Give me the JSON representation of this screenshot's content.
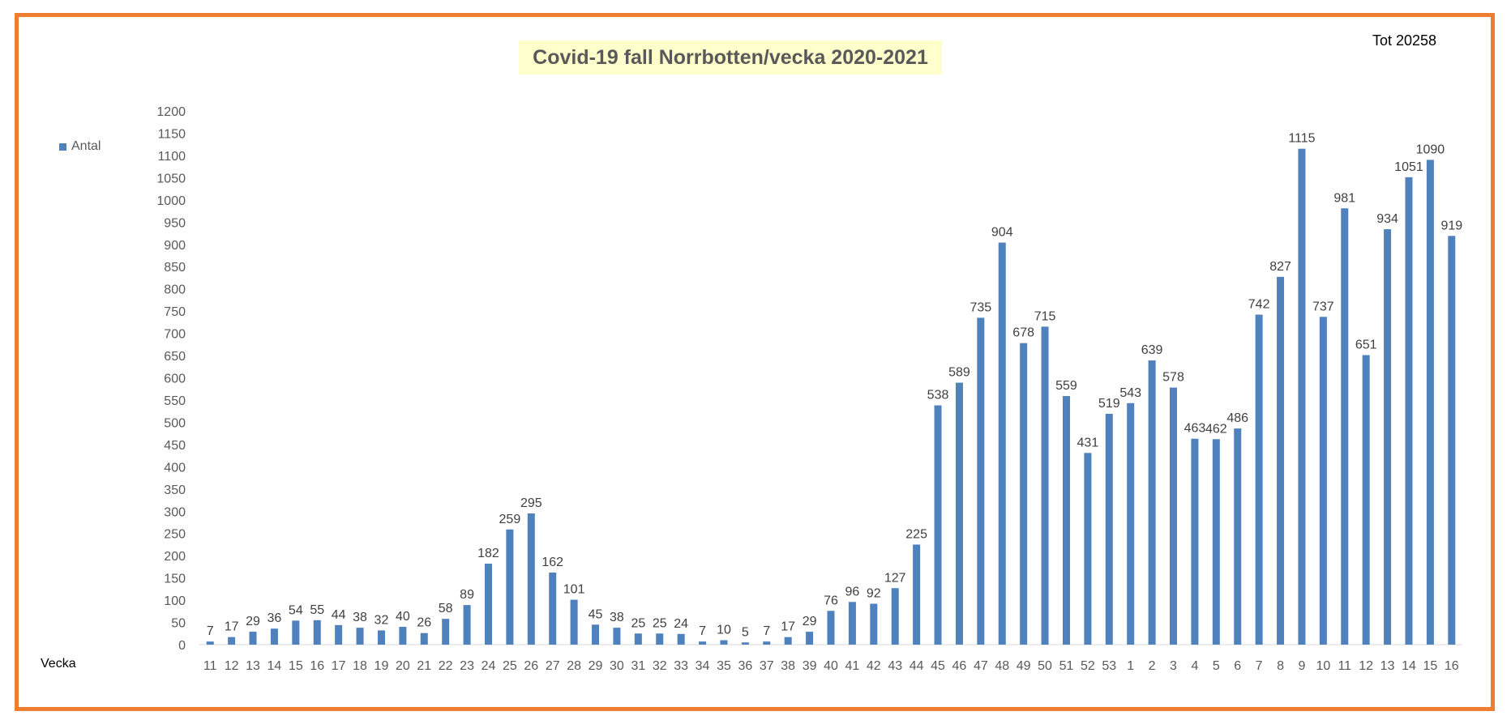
{
  "header": {
    "title": "Covid-19 fall Norrbotten/vecka 2020-2021",
    "total": "Tot 20258"
  },
  "legend": {
    "label": "Antal",
    "color": "#4F81BD"
  },
  "frame_color": "#ED7D31",
  "chart_data": {
    "type": "bar",
    "title": "Covid-19 fall Norrbotten/vecka 2020-2021",
    "xlabel": "Vecka",
    "ylabel": "",
    "ylim": [
      0,
      1200
    ],
    "y_ticks": [
      0,
      50,
      100,
      150,
      200,
      250,
      300,
      350,
      400,
      450,
      500,
      550,
      600,
      650,
      700,
      750,
      800,
      850,
      900,
      950,
      1000,
      1050,
      1100,
      1150,
      1200
    ],
    "grid": false,
    "legend_position": "left",
    "categories": [
      "11",
      "12",
      "13",
      "14",
      "15",
      "16",
      "17",
      "18",
      "19",
      "20",
      "21",
      "22",
      "23",
      "24",
      "25",
      "26",
      "27",
      "28",
      "29",
      "30",
      "31",
      "32",
      "33",
      "34",
      "35",
      "36",
      "37",
      "38",
      "39",
      "40",
      "41",
      "42",
      "43",
      "44",
      "45",
      "46",
      "47",
      "48",
      "49",
      "50",
      "51",
      "52",
      "53",
      "1",
      "2",
      "3",
      "4",
      "5",
      "6",
      "7",
      "8",
      "9",
      "10",
      "11",
      "12",
      "13",
      "14",
      "15",
      "16"
    ],
    "series": [
      {
        "name": "Antal",
        "values": [
          7,
          17,
          29,
          36,
          54,
          55,
          44,
          38,
          32,
          40,
          26,
          58,
          89,
          182,
          259,
          295,
          162,
          101,
          45,
          38,
          25,
          25,
          24,
          7,
          10,
          5,
          7,
          17,
          29,
          76,
          96,
          92,
          127,
          225,
          538,
          589,
          735,
          904,
          678,
          715,
          559,
          431,
          519,
          543,
          639,
          578,
          463,
          462,
          486,
          742,
          827,
          1115,
          737,
          981,
          651,
          934,
          1051,
          1090,
          919
        ]
      }
    ]
  }
}
